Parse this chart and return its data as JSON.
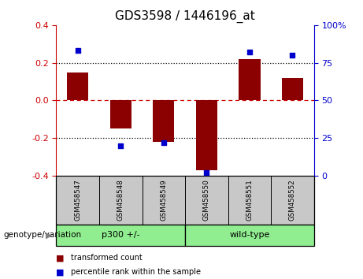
{
  "title": "GDS3598 / 1446196_at",
  "samples": [
    "GSM458547",
    "GSM458548",
    "GSM458549",
    "GSM458550",
    "GSM458551",
    "GSM458552"
  ],
  "red_bars": [
    0.15,
    -0.15,
    -0.22,
    -0.37,
    0.22,
    0.12
  ],
  "blue_dots": [
    83,
    20,
    22,
    2,
    82,
    80
  ],
  "ylim_left": [
    -0.4,
    0.4
  ],
  "ylim_right": [
    0,
    100
  ],
  "yticks_left": [
    -0.4,
    -0.2,
    0.0,
    0.2,
    0.4
  ],
  "yticks_right": [
    0,
    25,
    50,
    75,
    100
  ],
  "bar_color": "#8B0000",
  "dot_color": "#0000CD",
  "bar_width": 0.5,
  "title_fontsize": 11,
  "axis_label_color_left": "#CC0000",
  "axis_label_color_right": "#0000CD",
  "legend_red_label": "transformed count",
  "legend_blue_label": "percentile rank within the sample",
  "xlabels_bg": "#C8C8C8",
  "group1_label": "p300 +/-",
  "group1_color": "#90EE90",
  "group2_label": "wild-type",
  "group2_color": "#90EE90",
  "genotype_label": "genotype/variation"
}
